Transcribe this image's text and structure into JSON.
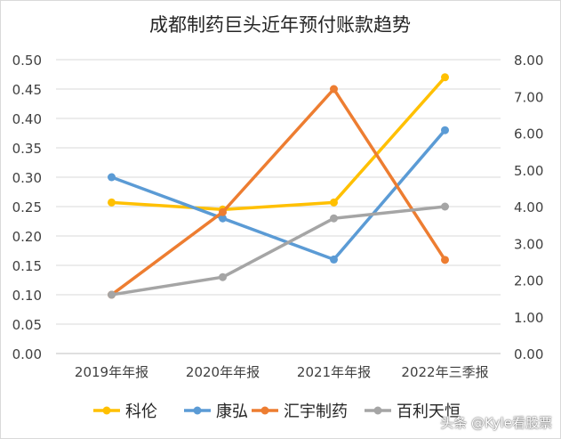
{
  "chart_data": {
    "type": "line",
    "title": "成都制药巨头近年预付账款趋势",
    "categories": [
      "2019年年报",
      "2020年年报",
      "2021年年报",
      "2022年三季报"
    ],
    "y_left": {
      "min": 0,
      "max": 0.5,
      "step": 0.05,
      "decimals": 2
    },
    "y_right": {
      "min": 0,
      "max": 8,
      "step": 1,
      "decimals": 2
    },
    "grid": true,
    "legend_position": "bottom",
    "series": [
      {
        "name": "科伦",
        "color": "#FFC000",
        "axis": "left",
        "values": [
          0.257,
          0.245,
          0.257,
          0.47
        ]
      },
      {
        "name": "康弘",
        "color": "#5B9BD5",
        "axis": "left",
        "values": [
          0.3,
          0.23,
          0.16,
          0.38
        ]
      },
      {
        "name": "汇宇制药",
        "color": "#ED7D31",
        "axis": "right",
        "values": [
          1.6,
          3.85,
          7.2,
          2.55
        ]
      },
      {
        "name": "百利天恒",
        "color": "#A5A5A5",
        "axis": "left",
        "values": [
          0.1,
          0.13,
          0.23,
          0.25
        ]
      }
    ]
  },
  "watermark": "头条 @Kyle看股票"
}
